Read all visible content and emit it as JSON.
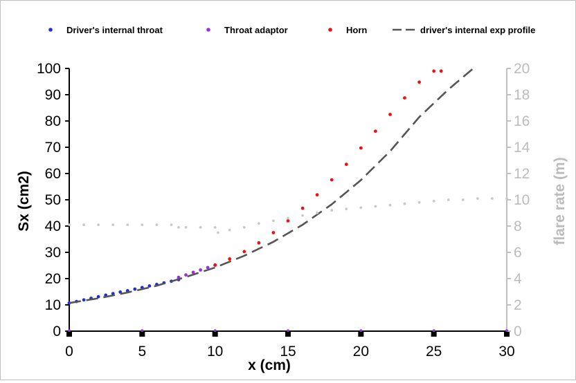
{
  "chart_data": {
    "type": "scatter",
    "xlabel": "x (cm)",
    "ylabel": "Sx (cm2)",
    "y2label": "flare rate (m)",
    "xlim": [
      0,
      30
    ],
    "ylim": [
      0,
      100
    ],
    "y2lim": [
      0,
      20
    ],
    "x_ticks": [
      0,
      5,
      10,
      15,
      20,
      25,
      30
    ],
    "y_ticks": [
      0,
      10,
      20,
      30,
      40,
      50,
      60,
      70,
      80,
      90,
      100
    ],
    "y2_ticks": [
      0,
      2,
      4,
      6,
      8,
      10,
      12,
      14,
      16,
      18,
      20
    ],
    "grid": false,
    "legend_position": "top",
    "series": [
      {
        "name": "Driver's internal throat",
        "style": "markers",
        "color": "#1f2fd8",
        "x": [
          0,
          0.5,
          1,
          1.5,
          2,
          2.5,
          3,
          3.5,
          4,
          4.5,
          5,
          5.5,
          6,
          6.5,
          7,
          7.5
        ],
        "y": [
          10.7,
          11.3,
          11.9,
          12.5,
          13.1,
          13.7,
          14.3,
          14.9,
          15.4,
          16.0,
          16.6,
          17.2,
          17.8,
          18.4,
          19.0,
          19.6
        ]
      },
      {
        "name": "Throat adaptor",
        "style": "markers",
        "color": "#9b30e0",
        "x": [
          7.5,
          8,
          8.5,
          9,
          9.5,
          10
        ],
        "y": [
          20.5,
          21.4,
          22.4,
          23.3,
          24.2,
          25.1
        ]
      },
      {
        "name": "Horn",
        "style": "markers",
        "color": "#ee1111",
        "x": [
          10,
          11,
          12,
          13,
          14,
          15,
          16,
          17,
          18,
          19,
          20,
          21,
          22,
          23,
          24,
          25,
          25.5
        ],
        "y": [
          25.2,
          27.5,
          30.3,
          33.6,
          37.5,
          42.0,
          46.8,
          51.9,
          57.6,
          63.5,
          69.7,
          76.1,
          82.5,
          88.8,
          94.8,
          99.0,
          99.0
        ]
      },
      {
        "name": "driver's internal exp profile",
        "style": "dashed-line",
        "color": "#555555",
        "x": [
          0,
          2,
          4,
          6,
          8,
          10,
          12,
          14,
          16,
          18,
          20,
          22,
          24,
          26,
          27.7
        ],
        "y": [
          10.7,
          12.5,
          14.7,
          17.3,
          20.6,
          24.2,
          28.7,
          34.0,
          40.5,
          48.3,
          57.5,
          68.5,
          81.5,
          92.0,
          100
        ]
      },
      {
        "axis": "y2",
        "style": "markers",
        "color": "#c8c8c8",
        "x": [
          0,
          1,
          2,
          3,
          4,
          5,
          6,
          7,
          7.5,
          8,
          9,
          10,
          10.2,
          11,
          12,
          13,
          14,
          15,
          16,
          17,
          18,
          19,
          20,
          21,
          22,
          23,
          24,
          25,
          26,
          27,
          28,
          29,
          30
        ],
        "y": [
          8.1,
          8.1,
          8.1,
          8.1,
          8.1,
          8.1,
          8.1,
          8.1,
          7.9,
          7.9,
          7.9,
          7.9,
          7.5,
          7.7,
          7.9,
          8.2,
          8.4,
          8.6,
          8.8,
          9.0,
          9.2,
          9.3,
          9.4,
          9.5,
          9.6,
          9.7,
          9.8,
          9.9,
          10.0,
          10.0,
          10.1,
          10.1,
          10.1
        ]
      },
      {
        "axis": "y2",
        "style": "markers",
        "color": "#9b30e0",
        "x": [
          0,
          5,
          10,
          15,
          20,
          25,
          30
        ],
        "y": [
          0.05,
          0.05,
          0.05,
          0.05,
          0.05,
          0.05,
          0.05
        ]
      }
    ]
  }
}
